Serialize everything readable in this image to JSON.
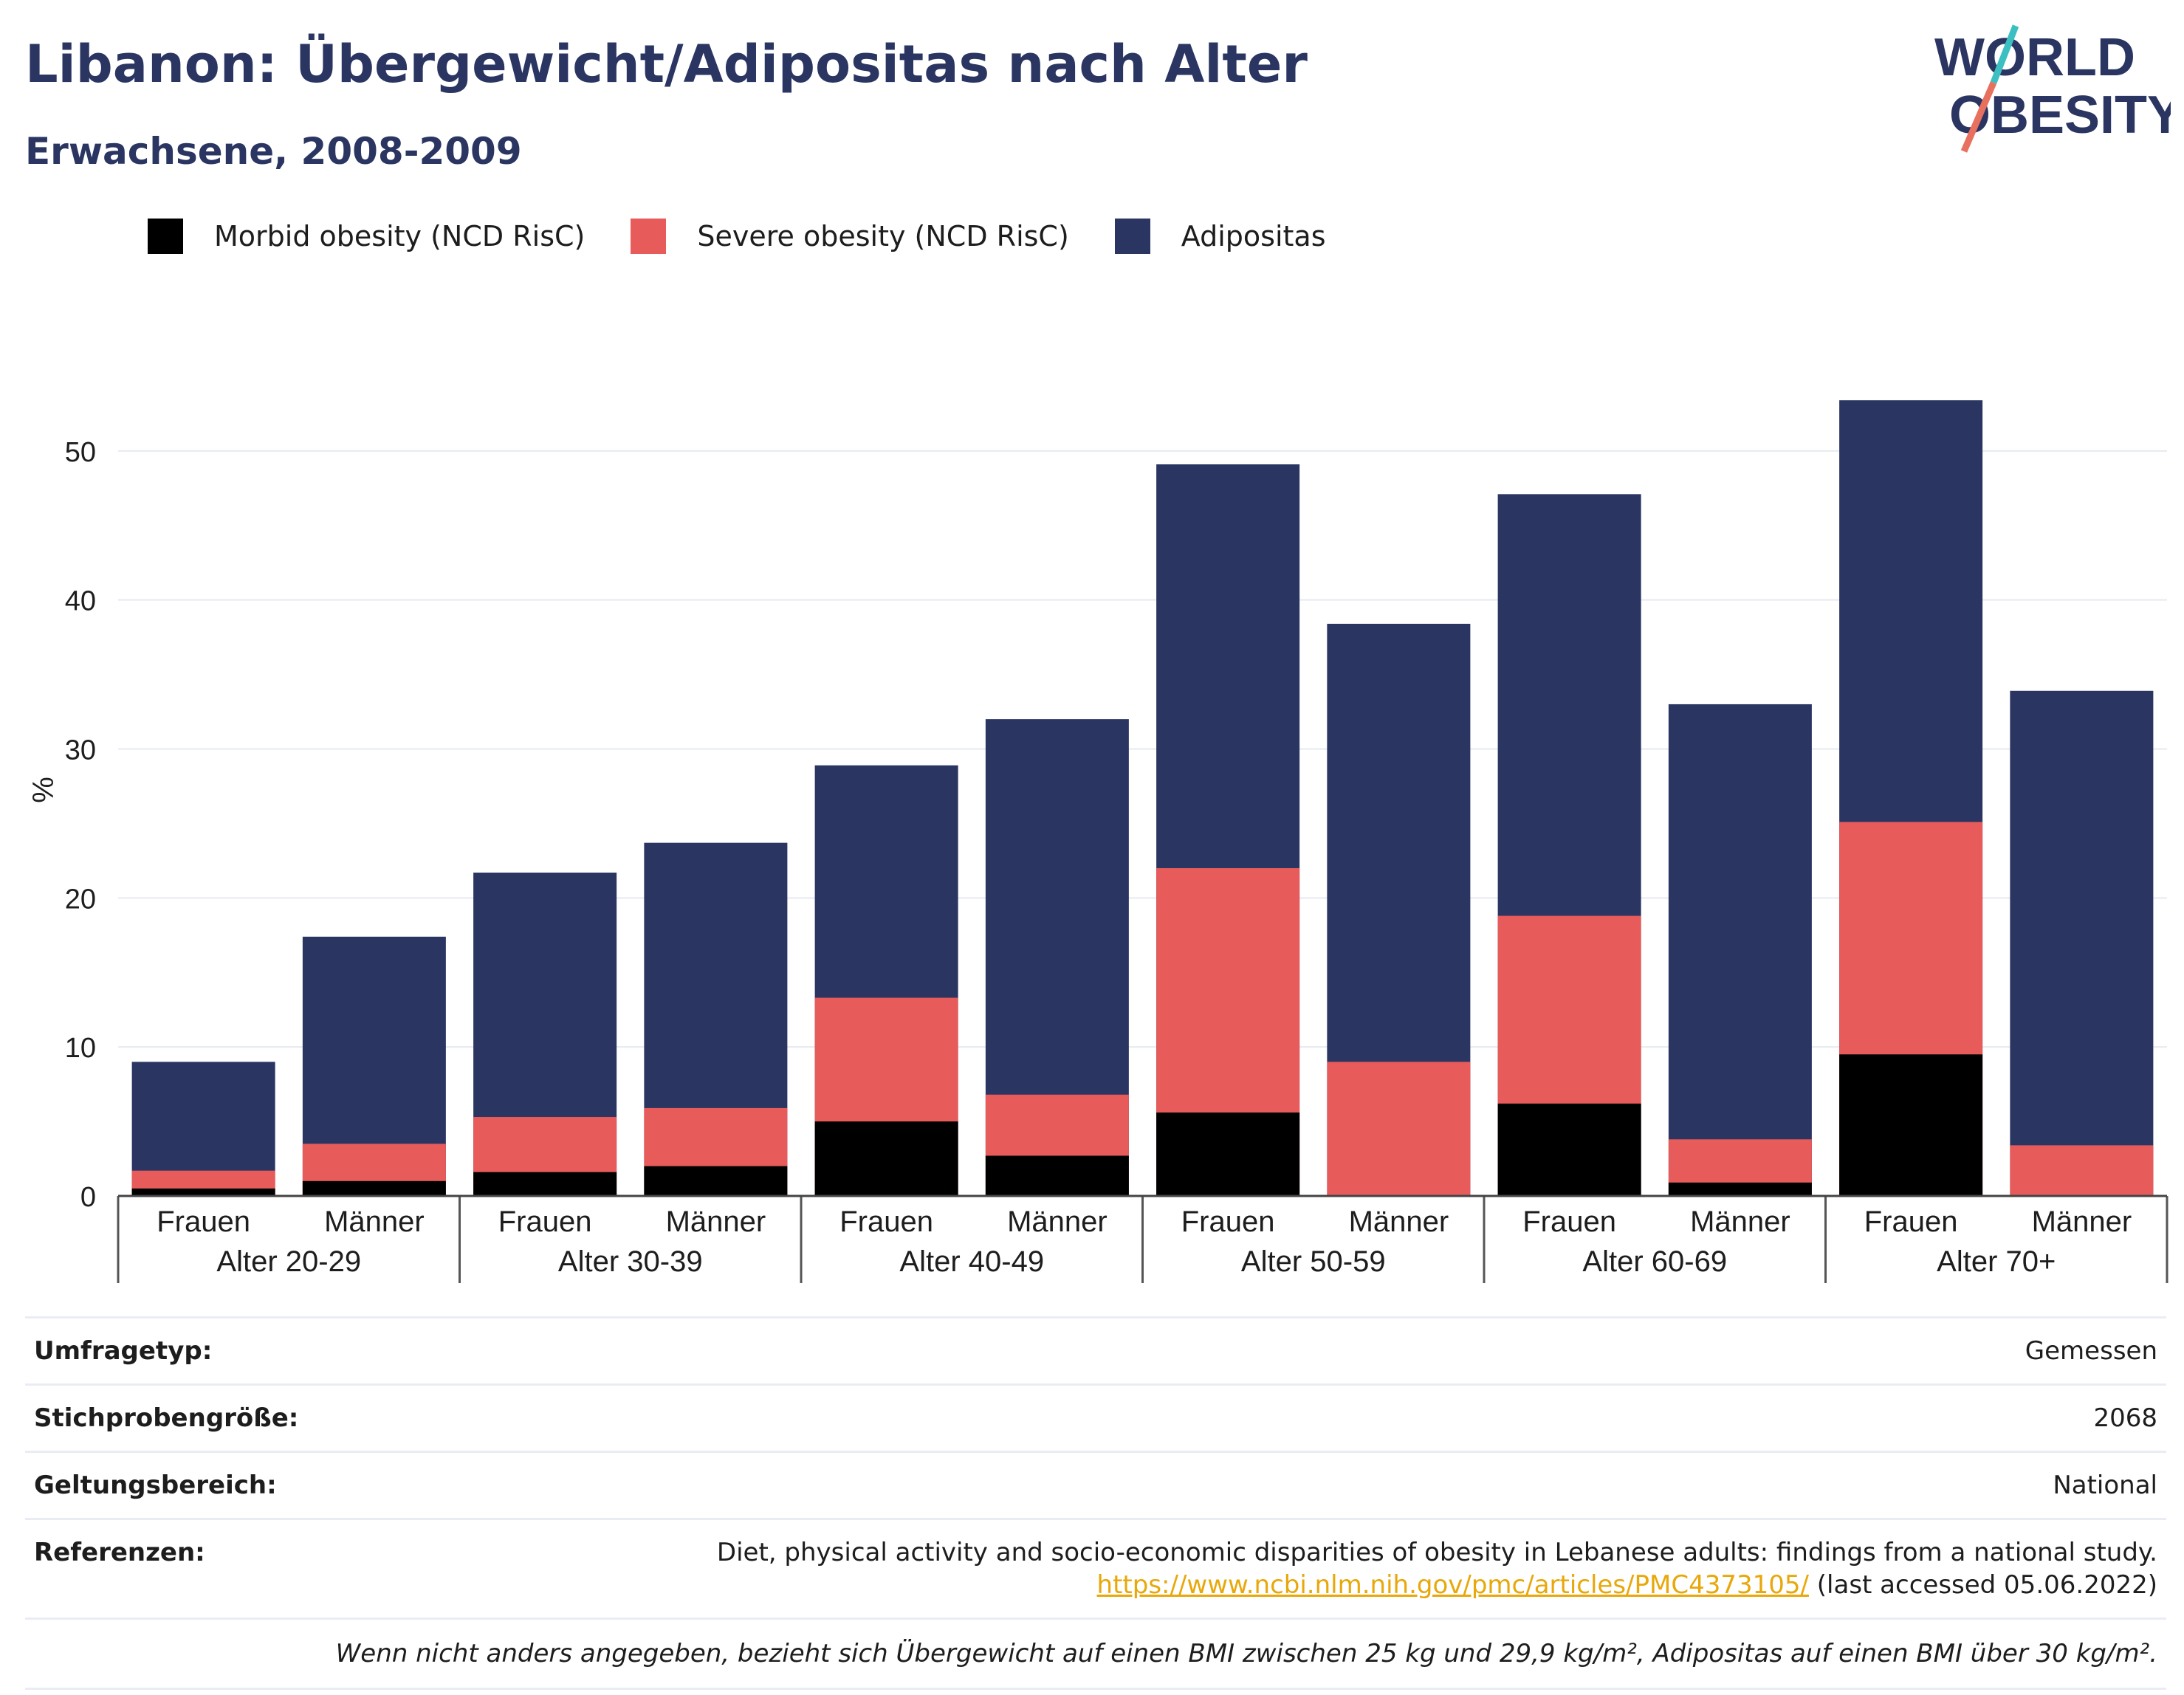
{
  "title": "Libanon: Übergewicht/Adipositas nach Alter",
  "subtitle": "Erwachsene, 2008-2009",
  "logo": {
    "line1": "WORLD",
    "line2": "OBESITY"
  },
  "colors": {
    "morbid": "#000000",
    "severe": "#e85b5b",
    "adipositas": "#2a3562",
    "grid": "#e6e9f0",
    "link": "#e8a80a"
  },
  "chart_data": {
    "type": "bar",
    "stacked": "overlay",
    "ylabel": "%",
    "ylim": [
      0,
      55
    ],
    "yticks": [
      0,
      10,
      20,
      30,
      40,
      50
    ],
    "grid": true,
    "legend_position": "top-left",
    "groups": [
      "Alter 20-29",
      "Alter 30-39",
      "Alter 40-49",
      "Alter 50-59",
      "Alter 60-69",
      "Alter 70+"
    ],
    "subcategories": [
      "Frauen",
      "Männer"
    ],
    "series": [
      {
        "name": "Morbid obesity (NCD RisC)",
        "color": "#000000",
        "values": [
          0.5,
          1.0,
          1.6,
          2.0,
          5.0,
          2.7,
          5.6,
          0.0,
          6.2,
          0.9,
          9.5,
          0.0
        ]
      },
      {
        "name": "Severe obesity (NCD RisC)",
        "color": "#e85b5b",
        "values": [
          1.7,
          3.5,
          5.3,
          5.9,
          13.3,
          6.8,
          22.0,
          9.0,
          18.8,
          3.8,
          25.1,
          3.4
        ]
      },
      {
        "name": "Adipositas",
        "color": "#2a3562",
        "values": [
          9.0,
          17.4,
          21.7,
          23.7,
          28.9,
          32.0,
          49.1,
          38.4,
          47.1,
          33.0,
          53.4,
          33.9
        ]
      }
    ]
  },
  "meta": {
    "rows": [
      {
        "key": "Umfragetyp:",
        "value": "Gemessen"
      },
      {
        "key": "Stichprobengröße:",
        "value": "2068"
      },
      {
        "key": "Geltungsbereich:",
        "value": "National"
      }
    ],
    "references": {
      "key": "Referenzen:",
      "text": "Diet, physical activity and socio-economic disparities of obesity in Lebanese adults: findings from a national study.",
      "url": "https://www.ncbi.nlm.nih.gov/pmc/articles/PMC4373105/",
      "accessed": "(last accessed 05.06.2022)"
    },
    "note": "Wenn nicht anders angegeben, bezieht sich Übergewicht auf einen BMI zwischen 25 kg und 29,9 kg/m², Adipositas auf einen BMI über 30 kg/m²."
  }
}
